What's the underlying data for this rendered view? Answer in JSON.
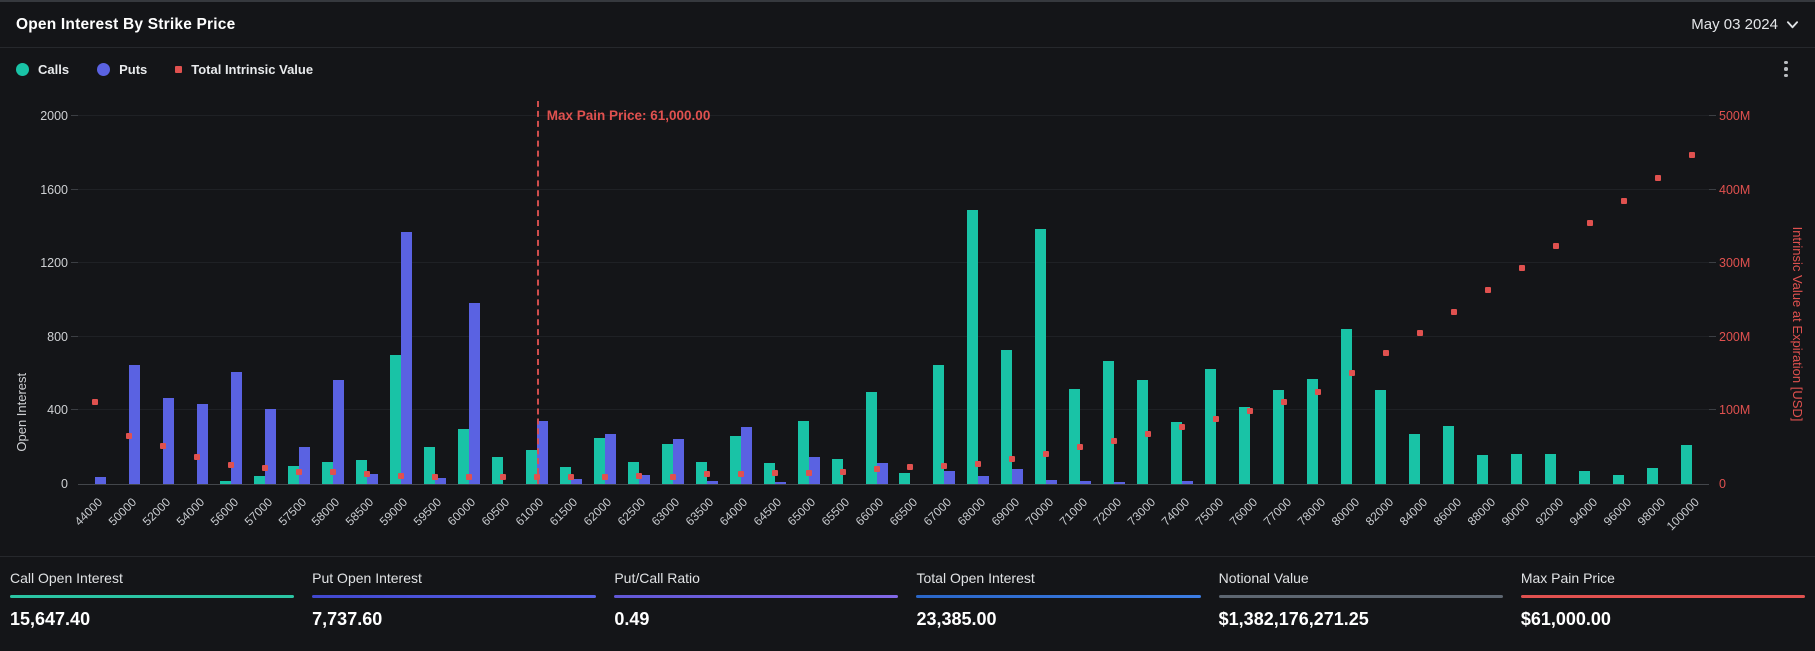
{
  "header": {
    "title": "Open Interest By Strike Price",
    "date_label": "May 03 2024"
  },
  "icons": {
    "date_chevron": "chevron-down",
    "menu": "kebab-vertical-dots"
  },
  "legend": [
    {
      "label": "Calls",
      "color": "#19c3a6",
      "shape": "circle"
    },
    {
      "label": "Puts",
      "color": "#5a62e2",
      "shape": "circle"
    },
    {
      "label": "Total Intrinsic Value",
      "color": "#e0514f",
      "shape": "square"
    }
  ],
  "chart_data": {
    "type": "bar",
    "title": "Open Interest By Strike Price",
    "grid": true,
    "legend_position": "top-left",
    "categories": [
      44000,
      50000,
      52000,
      54000,
      56000,
      57000,
      57500,
      58000,
      58500,
      59000,
      59500,
      60000,
      60500,
      61000,
      61500,
      62000,
      62500,
      63000,
      63500,
      64000,
      64500,
      65000,
      65500,
      66000,
      66500,
      67000,
      68000,
      69000,
      70000,
      71000,
      72000,
      73000,
      74000,
      75000,
      76000,
      77000,
      78000,
      80000,
      82000,
      84000,
      86000,
      88000,
      90000,
      92000,
      94000,
      96000,
      98000,
      100000
    ],
    "series": [
      {
        "name": "Calls",
        "type": "bar",
        "axis": "left",
        "color": "#19c3a6",
        "values": [
          0,
          0,
          0,
          0,
          18,
          43,
          100,
          118,
          130,
          702,
          203,
          299,
          145,
          185,
          90,
          248,
          118,
          217,
          118,
          262,
          116,
          340,
          134,
          500,
          60,
          648,
          1488,
          726,
          1385,
          516,
          668,
          565,
          335,
          625,
          416,
          510,
          570,
          845,
          510,
          271,
          317,
          157,
          163,
          163,
          69,
          49,
          85,
          214
        ]
      },
      {
        "name": "Puts",
        "type": "bar",
        "axis": "left",
        "color": "#5a62e2",
        "values": [
          36,
          648,
          470,
          434,
          610,
          407,
          199,
          565,
          52,
          1372,
          31,
          985,
          0,
          342,
          27,
          271,
          51,
          244,
          14,
          308,
          9,
          148,
          0,
          116,
          0,
          72,
          45,
          83,
          22,
          14,
          9,
          0,
          14,
          0,
          0,
          0,
          0,
          0,
          0,
          0,
          0,
          0,
          0,
          0,
          0,
          0,
          0,
          0
        ]
      },
      {
        "name": "Total Intrinsic Value",
        "type": "scatter",
        "axis": "right",
        "color": "#e0514f",
        "values_musd": [
          112,
          65,
          51,
          37,
          26,
          22,
          17,
          16,
          14,
          11,
          10,
          10,
          10,
          9,
          9,
          10,
          11,
          10,
          13,
          14,
          15,
          15,
          17,
          21,
          23,
          24,
          27,
          34,
          41,
          50,
          58,
          68,
          78,
          88,
          99,
          111,
          125,
          151,
          178,
          205,
          234,
          263,
          294,
          323,
          354,
          384,
          416,
          447
        ]
      }
    ],
    "left_axis": {
      "label": "Open Interest",
      "min": 0,
      "max": 2000,
      "ticks": [
        0,
        400,
        800,
        1200,
        1600,
        2000
      ]
    },
    "right_axis": {
      "label": "Intrinsic Value at Expiration [USD]",
      "min": 0,
      "max_musd": 500,
      "tick_labels": [
        "0",
        "100M",
        "200M",
        "300M",
        "400M",
        "500M"
      ]
    },
    "annotation": {
      "label": "Max Pain Price: 61,000.00",
      "x": 61000,
      "color": "#e0514f"
    }
  },
  "stats": [
    {
      "label": "Call Open Interest",
      "value": "15,647.40",
      "underline_css": "#2bc5a4"
    },
    {
      "label": "Put Open Interest",
      "value": "7,737.60",
      "underline_css": "linear-gradient(90deg,#4148cf,#5a62e8)"
    },
    {
      "label": "Put/Call Ratio",
      "value": "0.49",
      "underline_css": "linear-gradient(90deg,#6157d6,#8168e6)"
    },
    {
      "label": "Total Open Interest",
      "value": "23,385.00",
      "underline_css": "linear-gradient(90deg,#2a66c8,#3c7de4)"
    },
    {
      "label": "Notional Value",
      "value": "$1,382,176,271.25",
      "underline_css": "#5d6671"
    },
    {
      "label": "Max Pain Price",
      "value": "$61,000.00",
      "underline_css": "#e0514f"
    }
  ]
}
